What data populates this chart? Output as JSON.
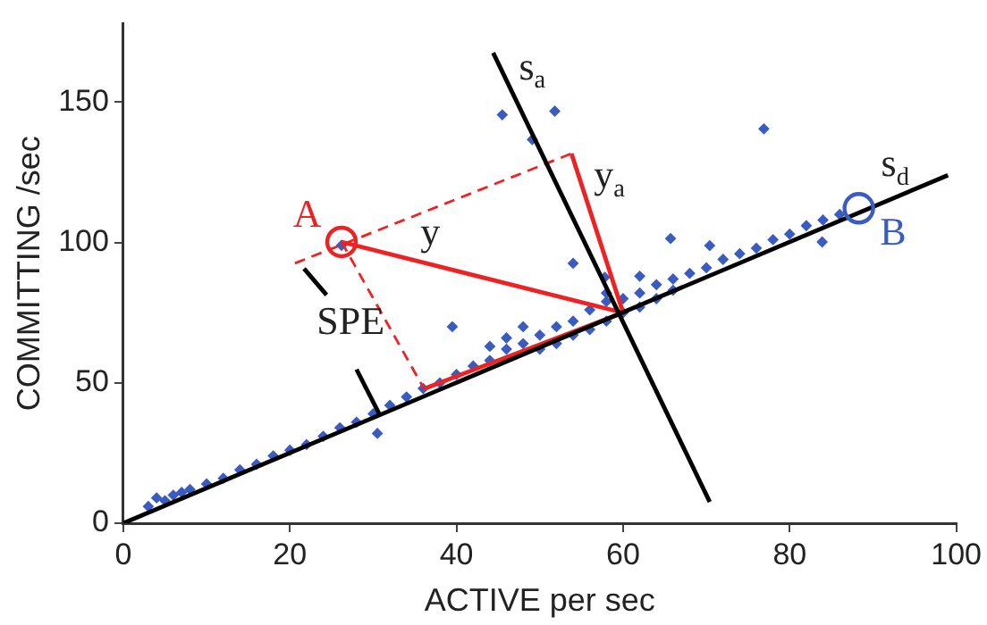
{
  "chart_data": {
    "type": "scatter",
    "xlabel": "ACTIVE per sec",
    "ylabel": "COMMITTING /sec",
    "xlim": [
      0,
      100
    ],
    "xticks": [
      0,
      20,
      40,
      60,
      80,
      100
    ],
    "ylim": [
      0,
      178
    ],
    "yticks": [
      0,
      50,
      100,
      150
    ],
    "grid": false,
    "legend": false,
    "marker": "diamond",
    "series": [
      {
        "type": "scatter",
        "color": "#3a5bbf",
        "x": [
          3,
          4,
          5,
          6,
          7,
          8,
          10,
          12,
          14,
          16,
          18,
          20,
          22,
          24,
          26,
          28,
          30,
          30.5,
          32,
          34,
          36,
          38,
          39.5,
          40,
          42,
          44,
          44,
          46,
          46,
          48,
          48,
          50,
          50,
          52,
          52,
          54,
          54,
          54,
          56,
          56,
          57.8,
          58,
          58,
          58,
          60,
          60,
          62,
          62,
          62,
          64,
          64,
          65.7,
          66,
          66,
          68,
          70.4,
          70,
          72,
          74,
          76,
          78,
          80,
          82,
          83.9,
          84,
          86,
          45.5,
          51.8,
          49.1,
          76.9,
          26.2
        ],
        "values": [
          6,
          9,
          8,
          10,
          11,
          12,
          14,
          16,
          19,
          21,
          24,
          26,
          28,
          31,
          34,
          36,
          39,
          32,
          42,
          45,
          48,
          50,
          70,
          53,
          56,
          58,
          63,
          62,
          66,
          64,
          70,
          67,
          62,
          70,
          64,
          72,
          67,
          92.6,
          76,
          69,
          87.6,
          79,
          72,
          82,
          80,
          75,
          82,
          77,
          88,
          85,
          80,
          101.4,
          87,
          83,
          89,
          98.9,
          91,
          94,
          96,
          98,
          101,
          103,
          106,
          100.2,
          108,
          110,
          145.5,
          146.8,
          136.7,
          140.5,
          99
        ]
      },
      {
        "type": "line",
        "color": "#000000",
        "marker": "none",
        "x": [
          0,
          99
        ],
        "values": [
          0,
          124
        ]
      },
      {
        "type": "line",
        "color": "#000000",
        "marker": "none",
        "x": [
          70.4,
          44.4
        ],
        "values": [
          7.6,
          167.6
        ]
      },
      {
        "type": "line",
        "color": "#ee2222",
        "marker": "none",
        "x": [
          60,
          26.2
        ],
        "values": [
          75,
          100.2
        ]
      },
      {
        "type": "line",
        "color": "#ee2222",
        "marker": "none",
        "x": [
          60,
          53.8
        ],
        "values": [
          75,
          131.7
        ]
      },
      {
        "type": "line",
        "color": "#ee2222",
        "marker": "none",
        "x": [
          60,
          36.1
        ],
        "values": [
          75,
          47.9
        ]
      },
      {
        "type": "line",
        "color": "#ee2222",
        "marker": "none",
        "line_style": "dashed",
        "x": [
          20.6,
          53.8
        ],
        "values": [
          92.6,
          131.7
        ]
      },
      {
        "type": "line",
        "color": "#ee2222",
        "marker": "none",
        "line_style": "dashed",
        "x": [
          26.2,
          36.1
        ],
        "values": [
          100.2,
          47.9
        ]
      },
      {
        "type": "line",
        "color": "#000000",
        "marker": "none",
        "x": [
          24.4,
          21.7
        ],
        "values": [
          81.3,
          90.7
        ]
      },
      {
        "type": "line",
        "color": "#000000",
        "marker": "none",
        "x": [
          28,
          30.7
        ],
        "values": [
          54.8,
          39.1
        ]
      },
      {
        "type": "scatter",
        "color": "#ee2222",
        "marker": "circle",
        "x": [
          26.2
        ],
        "values": [
          100.2
        ]
      },
      {
        "type": "scatter",
        "color": "#3a5bbf",
        "marker": "circle",
        "x": [
          88.3
        ],
        "values": [
          112.2
        ]
      }
    ],
    "annotations": [
      {
        "text": "A",
        "x": 26.2,
        "y": 100.2
      },
      {
        "text": "B",
        "x": 88.3,
        "y": 112.2
      },
      {
        "text": "y",
        "x": 36,
        "y": 92.9
      },
      {
        "text": "y$_{a}$",
        "x": 55.08,
        "y": 120
      },
      {
        "text": "s$_{a}$",
        "x": 46,
        "y": 157.4
      },
      {
        "text": "s$_{d}$",
        "x": 94,
        "y": 117.9
      },
      {
        "text": "SPE",
        "x": 24.4,
        "y": 81.3
      }
    ]
  }
}
